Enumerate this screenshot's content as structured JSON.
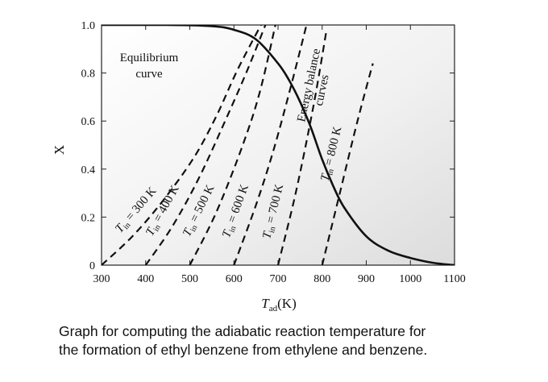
{
  "caption": {
    "line1": "Graph for computing the adiabatic reaction temperature for",
    "line2": "the formation of ethyl benzene from ethylene and benzene."
  },
  "chart_data": {
    "type": "line",
    "title": "",
    "xlabel": "T",
    "xlabel_sub": "ad",
    "xlabel_unit": "(K)",
    "ylabel": "X",
    "xlim": [
      300,
      1100
    ],
    "ylim": [
      0,
      1.0
    ],
    "xticks": [
      300,
      400,
      500,
      600,
      700,
      800,
      900,
      1000,
      1100
    ],
    "xtick_labels": [
      "300",
      "400",
      "500",
      "600",
      "700",
      "800",
      "900",
      "1000",
      "1100"
    ],
    "yticks": [
      0,
      0.2,
      0.4,
      0.6,
      0.8,
      1.0
    ],
    "ytick_labels": [
      "0",
      "0.2",
      "0.4",
      "0.6",
      "0.8",
      "1.0"
    ],
    "grid": false,
    "background": "light gray gradient",
    "equilibrium": {
      "label_line1": "Equilibrium",
      "label_line2": "curve",
      "style": "solid",
      "color": "#111111",
      "x": [
        300,
        450,
        550,
        600,
        650,
        700,
        725,
        750,
        775,
        800,
        825,
        850,
        900,
        950,
        1000,
        1050,
        1100
      ],
      "y": [
        1.0,
        1.0,
        0.995,
        0.98,
        0.94,
        0.84,
        0.77,
        0.68,
        0.57,
        0.44,
        0.33,
        0.24,
        0.12,
        0.06,
        0.03,
        0.01,
        0.0
      ]
    },
    "energy_balance": {
      "label_line1": "Energy balance",
      "label_line2": "curves",
      "style": "dashed",
      "color": "#111111",
      "series": [
        {
          "name": "Tin = 300 K",
          "tin": "300",
          "x": [
            300,
            370,
            440,
            510,
            560,
            610,
            670
          ],
          "y": [
            0,
            0.12,
            0.27,
            0.45,
            0.62,
            0.82,
            1.03
          ]
        },
        {
          "name": "Tin = 400 K",
          "tin": "400",
          "x": [
            400,
            460,
            520,
            580,
            630,
            680
          ],
          "y": [
            0,
            0.16,
            0.36,
            0.6,
            0.81,
            1.04
          ]
        },
        {
          "name": "Tin = 500 K",
          "tin": "500",
          "x": [
            500,
            560,
            620,
            660,
            700
          ],
          "y": [
            0,
            0.22,
            0.5,
            0.73,
            1.05
          ]
        },
        {
          "name": "Tin = 600 K",
          "tin": "600",
          "x": [
            600,
            650,
            690,
            730,
            770
          ],
          "y": [
            0,
            0.25,
            0.48,
            0.75,
            1.04
          ]
        },
        {
          "name": "Tin = 700 K",
          "tin": "700",
          "x": [
            700,
            740,
            780,
            810
          ],
          "y": [
            0,
            0.3,
            0.66,
            0.98
          ]
        },
        {
          "name": "Tin = 800 K",
          "tin": "800",
          "x": [
            800,
            840,
            880,
            915
          ],
          "y": [
            0,
            0.3,
            0.6,
            0.84
          ]
        }
      ]
    }
  }
}
